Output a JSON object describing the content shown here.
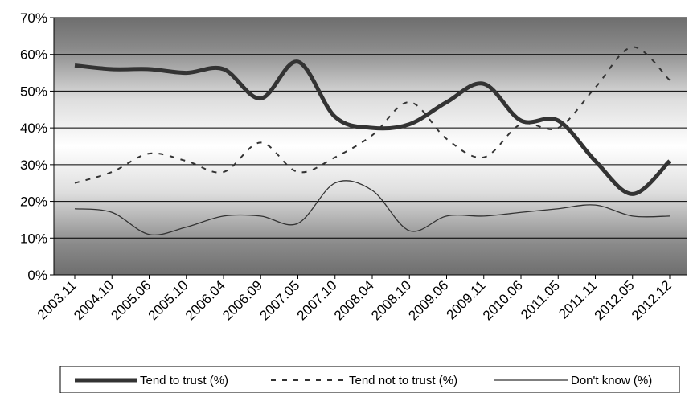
{
  "chart_data": {
    "type": "line",
    "title": "",
    "xlabel": "",
    "ylabel": "",
    "ylim": [
      0,
      70
    ],
    "y_ticks": [
      "0%",
      "10%",
      "20%",
      "30%",
      "40%",
      "50%",
      "60%",
      "70%"
    ],
    "x_tick_labels": [
      "2003.11",
      "2004.10",
      "2005.06",
      "2005.10",
      "2006.04",
      "2006.09",
      "2007.05",
      "2007.10",
      "2008.04",
      "2008.10",
      "2009.06",
      "2009.11",
      "2010.06",
      "2011.05",
      "2011.11",
      "2012.05",
      "2012.12"
    ],
    "grid": true,
    "legend_position": "bottom",
    "plot_background": "gradient dark-grey to white to dark-grey",
    "series": [
      {
        "name": "Tend to trust (%)",
        "style": "thick solid",
        "color": "#333333",
        "values": [
          57,
          56,
          56,
          55,
          56,
          48,
          58,
          43,
          40,
          41,
          47,
          52,
          42,
          42,
          31,
          22,
          31
        ]
      },
      {
        "name": "Tend not to trust (%)",
        "style": "dashed",
        "color": "#333333",
        "values": [
          25,
          28,
          33,
          31,
          28,
          36,
          28,
          32,
          38,
          47,
          37,
          32,
          41,
          40,
          51,
          62,
          53
        ]
      },
      {
        "name": "Don't know  (%)",
        "style": "thin solid",
        "color": "#333333",
        "values": [
          18,
          17,
          11,
          13,
          16,
          16,
          14,
          25,
          23,
          12,
          16,
          16,
          17,
          18,
          19,
          16,
          16
        ]
      }
    ]
  }
}
